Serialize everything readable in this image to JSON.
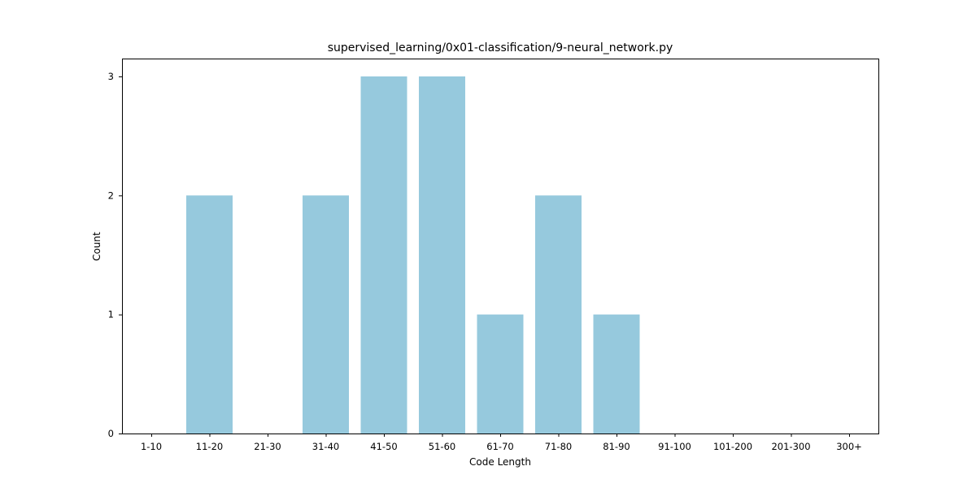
{
  "chart_data": {
    "type": "bar",
    "title": "supervised_learning/0x01-classification/9-neural_network.py",
    "xlabel": "Code Length",
    "ylabel": "Count",
    "categories": [
      "1-10",
      "11-20",
      "21-30",
      "31-40",
      "41-50",
      "51-60",
      "61-70",
      "71-80",
      "81-90",
      "91-100",
      "101-200",
      "201-300",
      "300+"
    ],
    "values": [
      0,
      2,
      0,
      2,
      3,
      3,
      1,
      2,
      1,
      0,
      0,
      0,
      0
    ],
    "ylim": [
      0,
      3.15
    ],
    "yticks": [
      0,
      1,
      2,
      3
    ],
    "bar_color": "#96c9dd",
    "grid": false,
    "legend": "none"
  }
}
